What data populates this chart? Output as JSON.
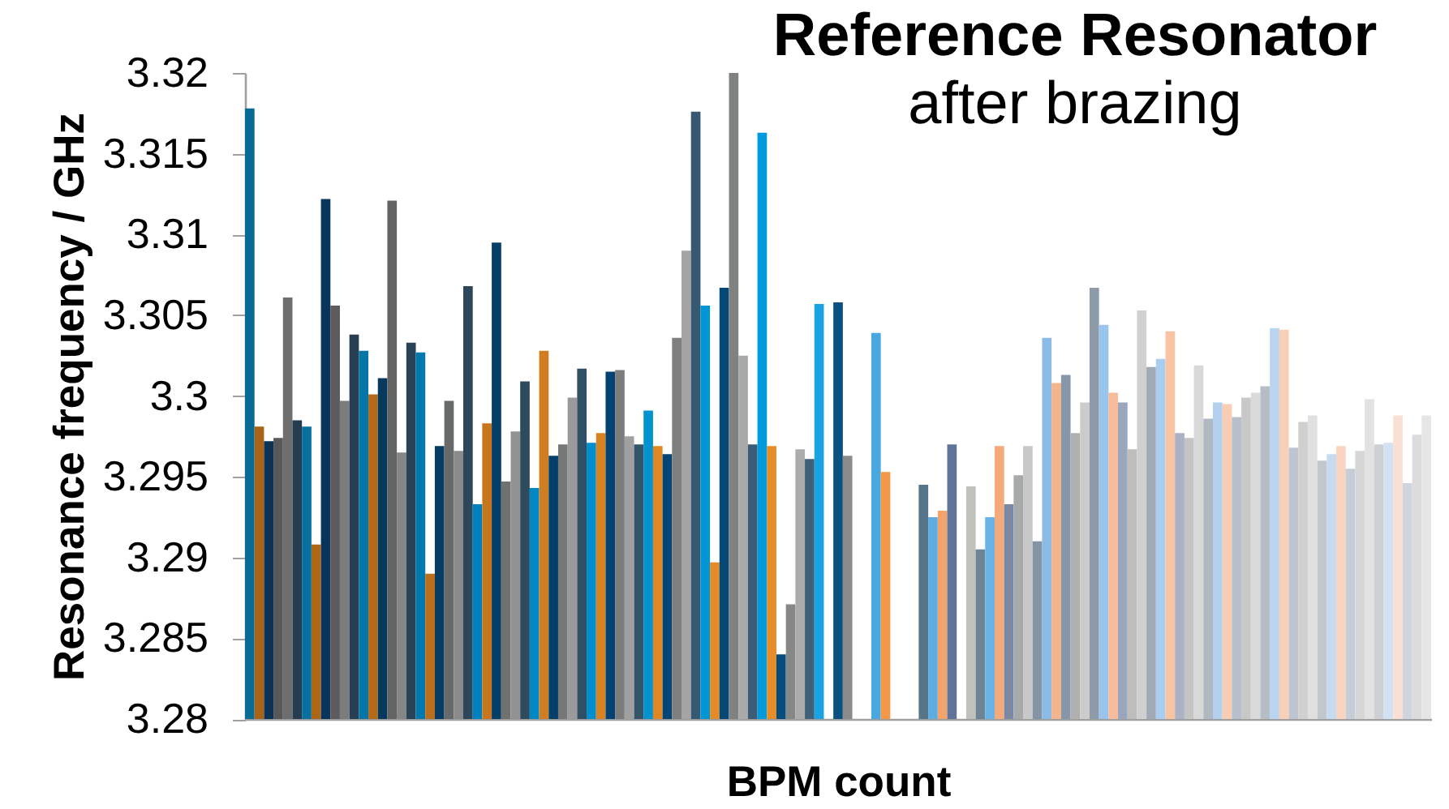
{
  "chart_data": {
    "type": "bar",
    "title": "Reference Resonator",
    "subtitle": "after brazing",
    "xlabel": "BPM count",
    "ylabel": "Resonance frequency / GHz",
    "categories": [
      null,
      null,
      null,
      null,
      null,
      null,
      null,
      null,
      null,
      null,
      null,
      null,
      null,
      null,
      null,
      null,
      null,
      null,
      null,
      null,
      null,
      null,
      null,
      null,
      null,
      null,
      null,
      null,
      null,
      null,
      null,
      null,
      null,
      null,
      null,
      null,
      null,
      null,
      null,
      null,
      null,
      null,
      null,
      null,
      null,
      null,
      null,
      null,
      null,
      null,
      null,
      null,
      null,
      null,
      null,
      null,
      null,
      null,
      null,
      null,
      null,
      null,
      null,
      null,
      null,
      null,
      null,
      null,
      null,
      null,
      null,
      null,
      null,
      null,
      null,
      null,
      null,
      null,
      null,
      null,
      null,
      null,
      null,
      null,
      null,
      null,
      null,
      null,
      null,
      null,
      null,
      null,
      null,
      null,
      null,
      null,
      null,
      null,
      null,
      null,
      null,
      null,
      null,
      null,
      null,
      null,
      null,
      null,
      null,
      null,
      null,
      null,
      null,
      null,
      null,
      null,
      null,
      null,
      null,
      null,
      null,
      null,
      null,
      null,
      null
    ],
    "values": [
      3.3178,
      3.2981,
      3.2972,
      3.2974,
      3.3061,
      3.2985,
      3.2981,
      3.2908,
      3.3122,
      3.3056,
      3.2997,
      3.3038,
      3.3028,
      3.3001,
      3.3011,
      3.3121,
      3.2965,
      3.3033,
      3.3027,
      3.289,
      3.2969,
      3.2997,
      3.2966,
      3.3068,
      3.2933,
      3.2983,
      3.3095,
      3.2947,
      3.2978,
      3.3009,
      3.2943,
      3.3028,
      3.2963,
      3.297,
      3.2999,
      3.3017,
      3.2971,
      3.2977,
      3.3015,
      3.3016,
      3.2975,
      3.297,
      3.2991,
      3.2969,
      3.2964,
      3.3036,
      3.309,
      3.3176,
      3.3056,
      3.2897,
      3.3067,
      3.32,
      3.3025,
      3.297,
      3.3163,
      3.2969,
      3.284,
      3.2871,
      3.2967,
      3.2961,
      3.3057,
      null,
      3.3058,
      3.2963,
      null,
      null,
      3.3039,
      3.2953,
      null,
      null,
      null,
      3.2945,
      3.2925,
      3.2929,
      3.297,
      null,
      3.2944,
      3.2905,
      3.2925,
      3.2969,
      3.2933,
      3.2951,
      3.2969,
      3.291,
      3.3036,
      3.3008,
      3.3013,
      3.2977,
      3.2996,
      3.3067,
      3.3044,
      3.3002,
      3.2996,
      3.2967,
      3.3053,
      3.3018,
      3.3023,
      3.304,
      3.2977,
      3.2974,
      3.3019,
      3.2986,
      3.2996,
      3.2995,
      3.2987,
      3.2999,
      3.3002,
      3.3006,
      3.3042,
      3.3041,
      3.2968,
      3.2984,
      3.2988,
      3.296,
      3.2964,
      3.2969,
      3.2955,
      3.2966,
      3.2998,
      3.297,
      3.2971,
      3.2988,
      3.2946,
      3.2976,
      3.2988
    ],
    "colors": [
      "#0a6a96",
      "#a86414",
      "#0a3356",
      "#585858",
      "#6e6e6e",
      "#263d50",
      "#08709f",
      "#ac6616",
      "#09355a",
      "#5c5c5c",
      "#7c7c7c",
      "#283f53",
      "#0575a8",
      "#b46a18",
      "#07385e",
      "#626464",
      "#858585",
      "#2a4257",
      "#0079ad",
      "#bc6e1a",
      "#063b62",
      "#686a6a",
      "#8a8a8a",
      "#2c465b",
      "#0081bd",
      "#c8761e",
      "#053e67",
      "#707272",
      "#929292",
      "#2e4a5e",
      "#0088c5",
      "#d07c20",
      "#043f6a",
      "#767878",
      "#9a9a9a",
      "#314f64",
      "#008fcc",
      "#d88222",
      "#034170",
      "#7b7d7d",
      "#a0a0a0",
      "#34546a",
      "#0093d0",
      "#e08724",
      "#034574",
      "#7e8080",
      "#a4a4a4",
      "#365870",
      "#0096d5",
      "#e48a26",
      "#044878",
      "#808282",
      "#a9a9a9",
      "#3a5c74",
      "#009ade",
      "#e88c28",
      "#064c7c",
      "#868888",
      "#acacac",
      "#3e6078",
      "#1aa2e2",
      null,
      "#0a5080",
      "#8a8c8c",
      null,
      null,
      "#4aa8e0",
      "#f29848",
      null,
      null,
      null,
      "#56748a",
      "#5dade2",
      "#f4a46a",
      "#5f7496",
      null,
      "#c0c0bd",
      "#6e8494",
      "#6ab3e6",
      "#f4aa7a",
      "#7b88a5",
      "#a8aaaa",
      "#c8c8c8",
      "#8394a4",
      "#8bbce6",
      "#f4b48c",
      "#8896aa",
      "#b0b0b0",
      "#cccccc",
      "#8d9aa8",
      "#99c4ec",
      "#f6bc9c",
      "#9ba5bb",
      "#bdbdbd",
      "#d0d0d0",
      "#a0aab5",
      "#a8cdef",
      "#f8c4a4",
      "#aab2c4",
      "#c4c4c4",
      "#d8d8d8",
      "#b0b8c2",
      "#b3d1ee",
      "#f8cdb4",
      "#b8bfcc",
      "#c8c8c8",
      "#dadada",
      "#b5bdc5",
      "#b8d4ee",
      "#f8d0b8",
      "#bfc5d0",
      "#d0d0d0",
      "#e0e0e0",
      "#c2c7cd",
      "#c6dbf0",
      "#f9d4c0",
      "#c8ccd6",
      "#d6d6d6",
      "#e2e2e2",
      "#cdd0d4",
      "#d2e2f2",
      "#fadfd4",
      "#d0d4dc",
      "#dcdcdc",
      "#e6e6e6"
    ],
    "ylim": [
      3.28,
      3.32
    ],
    "yticks": [
      3.28,
      3.285,
      3.29,
      3.295,
      3.3,
      3.305,
      3.31,
      3.315,
      3.32
    ],
    "tick_labels": "y"
  }
}
